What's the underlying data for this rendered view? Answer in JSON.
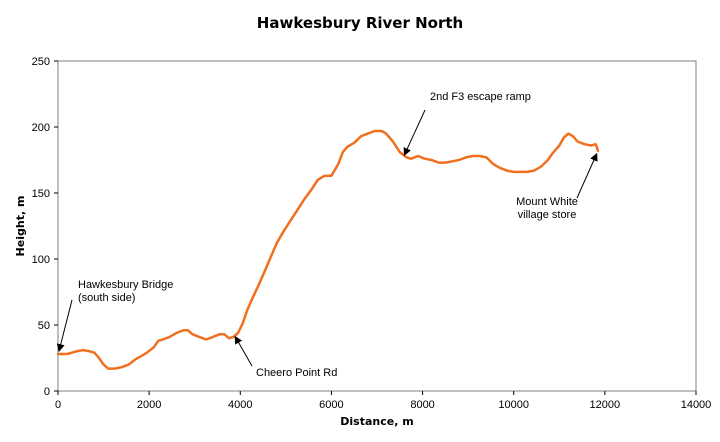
{
  "chart_data": {
    "type": "line",
    "title": "Hawkesbury River North",
    "xlabel": "Distance, m",
    "ylabel": "Height, m",
    "xlim": [
      0,
      14000
    ],
    "ylim": [
      0,
      250
    ],
    "xticks": [
      0,
      2000,
      4000,
      6000,
      8000,
      10000,
      12000,
      14000
    ],
    "yticks": [
      0,
      50,
      100,
      150,
      200,
      250
    ],
    "grid": false,
    "legend": "none",
    "line_color": "#f07020",
    "series": [
      {
        "x": [
          0,
          200,
          400,
          550,
          700,
          800,
          900,
          1000,
          1100,
          1250,
          1400,
          1550,
          1700,
          1850,
          1950,
          2100,
          2200,
          2300,
          2450,
          2600,
          2750,
          2850,
          2950,
          3100,
          3250,
          3400,
          3550,
          3650,
          3750,
          3850,
          3950,
          4050,
          4150,
          4250,
          4400,
          4550,
          4650,
          4800,
          4950,
          5100,
          5250,
          5400,
          5550,
          5700,
          5850,
          6000,
          6150,
          6250,
          6350,
          6500,
          6650,
          6800,
          6950,
          7100,
          7200,
          7350,
          7500,
          7650,
          7750,
          7900,
          8050,
          8200,
          8350,
          8500,
          8650,
          8800,
          8950,
          9100,
          9250,
          9400,
          9550,
          9700,
          9850,
          10000,
          10150,
          10300,
          10450,
          10600,
          10750,
          10850,
          11000,
          11100,
          11200,
          11300,
          11400,
          11550,
          11700,
          11800,
          11850
        ],
        "y": [
          28,
          28,
          30,
          31,
          30,
          29,
          25,
          20,
          17,
          17,
          18,
          20,
          24,
          27,
          29,
          33,
          38,
          39,
          41,
          44,
          46,
          46,
          43,
          41,
          39,
          41,
          43,
          43,
          40,
          41,
          44,
          51,
          61,
          69,
          80,
          92,
          100,
          112,
          121,
          129,
          137,
          145,
          152,
          160,
          163,
          163,
          172,
          181,
          185,
          188,
          193,
          195,
          197,
          197,
          195,
          189,
          181,
          177,
          176,
          178,
          176,
          175,
          173,
          173,
          174,
          175,
          177,
          178,
          178,
          177,
          172,
          169,
          167,
          166,
          166,
          166,
          167,
          170,
          175,
          180,
          186,
          192,
          195,
          193,
          189,
          187,
          186,
          187,
          182
        ]
      }
    ],
    "annotations": [
      {
        "lines": [
          "Hawkesbury Bridge",
          "(south side)"
        ],
        "point": [
          0,
          28
        ]
      },
      {
        "lines": [
          "Cheero Point Rd"
        ],
        "point": [
          3800,
          42
        ]
      },
      {
        "lines": [
          "2nd F3 escape ramp"
        ],
        "point": [
          7600,
          181
        ]
      },
      {
        "lines": [
          "Mount White",
          "village store"
        ],
        "point": [
          11800,
          182
        ]
      }
    ]
  }
}
